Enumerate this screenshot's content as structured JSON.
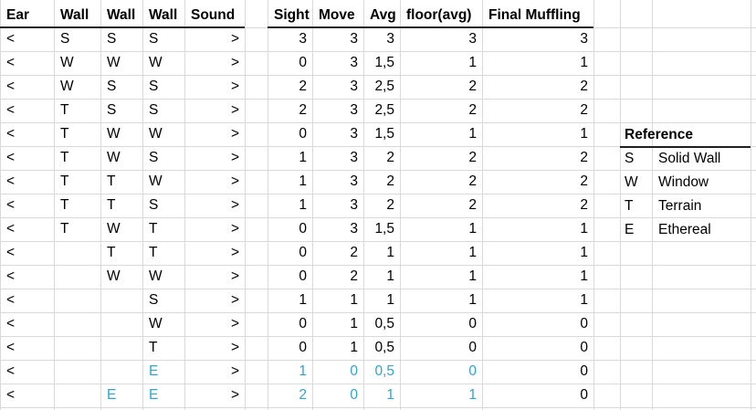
{
  "headers": [
    "Ear",
    "Wall",
    "Wall",
    "Wall",
    "Sound",
    "",
    "Sight",
    "Move",
    "Avg",
    "floor(avg)",
    "Final Muffling"
  ],
  "rows": [
    {
      "ear": "<",
      "w1": "S",
      "w2": "S",
      "w3": "S",
      "sound": ">",
      "sight": "3",
      "move": "3",
      "avg": "3",
      "floor": "3",
      "final": "3"
    },
    {
      "ear": "<",
      "w1": "W",
      "w2": "W",
      "w3": "W",
      "sound": ">",
      "sight": "0",
      "move": "3",
      "avg": "1,5",
      "floor": "1",
      "final": "1"
    },
    {
      "ear": "<",
      "w1": "W",
      "w2": "S",
      "w3": "S",
      "sound": ">",
      "sight": "2",
      "move": "3",
      "avg": "2,5",
      "floor": "2",
      "final": "2"
    },
    {
      "ear": "<",
      "w1": "T",
      "w2": "S",
      "w3": "S",
      "sound": ">",
      "sight": "2",
      "move": "3",
      "avg": "2,5",
      "floor": "2",
      "final": "2"
    },
    {
      "ear": "<",
      "w1": "T",
      "w2": "W",
      "w3": "W",
      "sound": ">",
      "sight": "0",
      "move": "3",
      "avg": "1,5",
      "floor": "1",
      "final": "1"
    },
    {
      "ear": "<",
      "w1": "T",
      "w2": "W",
      "w3": "S",
      "sound": ">",
      "sight": "1",
      "move": "3",
      "avg": "2",
      "floor": "2",
      "final": "2"
    },
    {
      "ear": "<",
      "w1": "T",
      "w2": "T",
      "w3": "W",
      "sound": ">",
      "sight": "1",
      "move": "3",
      "avg": "2",
      "floor": "2",
      "final": "2"
    },
    {
      "ear": "<",
      "w1": "T",
      "w2": "T",
      "w3": "S",
      "sound": ">",
      "sight": "1",
      "move": "3",
      "avg": "2",
      "floor": "2",
      "final": "2"
    },
    {
      "ear": "<",
      "w1": "T",
      "w2": "W",
      "w3": "T",
      "sound": ">",
      "sight": "0",
      "move": "3",
      "avg": "1,5",
      "floor": "1",
      "final": "1"
    },
    {
      "ear": "<",
      "w1": "",
      "w2": "T",
      "w3": "T",
      "sound": ">",
      "sight": "0",
      "move": "2",
      "avg": "1",
      "floor": "1",
      "final": "1"
    },
    {
      "ear": "<",
      "w1": "",
      "w2": "W",
      "w3": "W",
      "sound": ">",
      "sight": "0",
      "move": "2",
      "avg": "1",
      "floor": "1",
      "final": "1"
    },
    {
      "ear": "<",
      "w1": "",
      "w2": "",
      "w3": "S",
      "sound": ">",
      "sight": "1",
      "move": "1",
      "avg": "1",
      "floor": "1",
      "final": "1"
    },
    {
      "ear": "<",
      "w1": "",
      "w2": "",
      "w3": "W",
      "sound": ">",
      "sight": "0",
      "move": "1",
      "avg": "0,5",
      "floor": "0",
      "final": "0"
    },
    {
      "ear": "<",
      "w1": "",
      "w2": "",
      "w3": "T",
      "sound": ">",
      "sight": "0",
      "move": "1",
      "avg": "0,5",
      "floor": "0",
      "final": "0"
    },
    {
      "ear": "<",
      "w1": "",
      "w2": "",
      "w3": "E",
      "sound": ">",
      "sight": "1",
      "move": "0",
      "avg": "0,5",
      "floor": "0",
      "final": "0",
      "highlight": [
        "w3",
        "sight",
        "move",
        "avg",
        "floor"
      ]
    },
    {
      "ear": "<",
      "w1": "",
      "w2": "E",
      "w3": "E",
      "sound": ">",
      "sight": "2",
      "move": "0",
      "avg": "1",
      "floor": "1",
      "final": "0",
      "highlight": [
        "w2",
        "w3",
        "sight",
        "move",
        "avg",
        "floor"
      ]
    }
  ],
  "reference": {
    "title": "Reference",
    "items": [
      {
        "code": "S",
        "label": "Solid Wall"
      },
      {
        "code": "W",
        "label": "Window"
      },
      {
        "code": "T",
        "label": "Terrain"
      },
      {
        "code": "E",
        "label": "Ethereal"
      }
    ]
  },
  "colors": {
    "highlight": "#2fa4cf",
    "grid": "#d9d9d9",
    "text": "#000000"
  }
}
